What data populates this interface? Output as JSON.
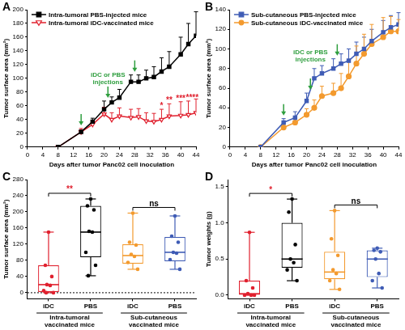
{
  "chart_data": [
    {
      "panel": "A",
      "type": "line",
      "x_label": "Days after tumor Panc02 cell inoculation",
      "y_label": "Tumor surface area (mm²)",
      "xlim": [
        0,
        44
      ],
      "xticks": [
        0,
        4,
        8,
        12,
        16,
        20,
        24,
        28,
        32,
        36,
        40,
        44
      ],
      "ylim": [
        0,
        200
      ],
      "yticks": [
        0,
        20,
        40,
        60,
        80,
        100,
        120,
        140,
        160,
        180,
        200
      ],
      "legend": "upper left",
      "x": [
        8,
        14,
        17,
        20,
        22,
        24,
        27,
        29,
        31,
        33,
        35,
        37,
        40,
        42,
        44
      ],
      "series": [
        {
          "name": "Intra-tumoral PBS-injected mice",
          "color": "#000000",
          "marker": "square",
          "values": [
            0,
            22,
            37,
            55,
            65,
            72,
            95,
            95,
            100,
            102,
            110,
            117,
            135,
            150,
            162
          ],
          "errors": [
            0,
            3,
            5,
            12,
            8,
            12,
            10,
            10,
            12,
            15,
            20,
            22,
            25,
            30,
            35
          ]
        },
        {
          "name": "Intra-tumoral iDC-vaccinated mice",
          "color": "#e0202e",
          "marker": "triangle-down-open",
          "values": [
            0,
            22,
            33,
            48,
            40,
            45,
            43,
            44,
            38,
            37,
            40,
            45,
            46,
            47,
            50
          ],
          "errors": [
            0,
            5,
            5,
            10,
            10,
            12,
            12,
            12,
            12,
            12,
            15,
            18,
            20,
            20,
            20
          ]
        }
      ],
      "annotation": {
        "text": [
          "iDC or PBS",
          "injections"
        ],
        "days": [
          14,
          21,
          28
        ],
        "color": "#2e9e3e"
      },
      "significance": {
        "series": 1,
        "x": [
          35,
          37,
          40,
          43
        ],
        "labels": [
          "*",
          "**",
          "***",
          "****"
        ],
        "color": "#e0202e"
      }
    },
    {
      "panel": "B",
      "type": "line",
      "x_label": "Days after tumor Panc02 cell inoculation",
      "y_label": "Tumor surface area (mm²)",
      "xlim": [
        0,
        44
      ],
      "xticks": [
        0,
        4,
        8,
        12,
        16,
        20,
        24,
        28,
        32,
        36,
        40,
        44
      ],
      "ylim": [
        0,
        140
      ],
      "yticks": [
        0,
        20,
        40,
        60,
        80,
        100,
        120,
        140
      ],
      "legend": "upper left",
      "x": [
        8,
        14,
        17,
        20,
        22,
        24,
        27,
        29,
        31,
        33,
        35,
        37,
        40,
        42,
        44
      ],
      "series": [
        {
          "name": "Sub-cutaneous PBS-injected mice",
          "color": "#3f5cb5",
          "marker": "square",
          "values": [
            0,
            25,
            30,
            47,
            70,
            75,
            80,
            85,
            88,
            95,
            100,
            108,
            117,
            122,
            125
          ],
          "errors": [
            0,
            4,
            6,
            8,
            10,
            8,
            10,
            10,
            12,
            12,
            12,
            12,
            12,
            12,
            12
          ]
        },
        {
          "name": "Sub-cutaneous iDC-vaccinated mice",
          "color": "#f39a2e",
          "marker": "circle",
          "values": [
            0,
            20,
            25,
            33,
            40,
            52,
            55,
            60,
            72,
            85,
            95,
            105,
            112,
            118,
            118
          ],
          "errors": [
            0,
            3,
            5,
            6,
            8,
            10,
            10,
            15,
            15,
            18,
            20,
            20,
            20,
            15,
            12
          ]
        }
      ],
      "annotation": {
        "text": [
          "iDC or PBS",
          "injections"
        ],
        "days": [
          14,
          21,
          28
        ],
        "color": "#2e9e3e"
      }
    },
    {
      "panel": "C",
      "type": "box",
      "y_label": "Tumor surface area (mm²)",
      "ylim": [
        -15,
        280
      ],
      "yticks": [
        0,
        40,
        80,
        120,
        160,
        200,
        240,
        280
      ],
      "reference_line": 0,
      "categories": [
        "iDC",
        "PBS",
        "iDC",
        "PBS"
      ],
      "colors": [
        "#e0202e",
        "#000000",
        "#f39a2e",
        "#3f5cb5"
      ],
      "boxes": [
        {
          "min": 0,
          "q1": 2,
          "median": 20,
          "q3": 68,
          "max": 150,
          "points": [
            150,
            68,
            40,
            20,
            18,
            5,
            0,
            0
          ]
        },
        {
          "min": 42,
          "q1": 88,
          "median": 150,
          "q3": 215,
          "max": 232,
          "points": [
            232,
            215,
            205,
            152,
            150,
            100,
            68,
            42
          ]
        },
        {
          "min": 58,
          "q1": 72,
          "median": 92,
          "q3": 120,
          "max": 197,
          "points": [
            197,
            125,
            118,
            95,
            90,
            75,
            58
          ]
        },
        {
          "min": 58,
          "q1": 78,
          "median": 100,
          "q3": 138,
          "max": 190,
          "points": [
            190,
            140,
            125,
            100,
            98,
            82,
            58
          ]
        }
      ],
      "groups": [
        {
          "label": [
            "Intra-tumoral",
            "vaccinated mice"
          ],
          "categories": [
            0,
            1
          ]
        },
        {
          "label": [
            "Sub-cutaneous",
            "vaccinated mice"
          ],
          "categories": [
            2,
            3
          ]
        }
      ],
      "comparisons": [
        {
          "categories": [
            0,
            1
          ],
          "label": "**",
          "color": "#e0202e"
        },
        {
          "categories": [
            2,
            3
          ],
          "label": "ns",
          "color": "#000000"
        }
      ]
    },
    {
      "panel": "D",
      "type": "box",
      "y_label": "Tumor weights (g)",
      "ylim": [
        -0.05,
        1.6
      ],
      "yticks": [
        {
          "value": 0,
          "label": "0.0"
        },
        0.5,
        {
          "value": 1,
          "label": "1.0"
        },
        1.5
      ],
      "categories": [
        "iDC",
        "PBS",
        "iDC",
        "PBS"
      ],
      "colors": [
        "#e0202e",
        "#000000",
        "#f39a2e",
        "#3f5cb5"
      ],
      "boxes": [
        {
          "min": 0,
          "q1": 0,
          "median": 0.02,
          "q3": 0.2,
          "max": 0.87,
          "points": [
            0.87,
            0.2,
            0.1,
            0.02,
            0,
            0,
            0
          ]
        },
        {
          "min": 0.2,
          "q1": 0.38,
          "median": 0.5,
          "q3": 1.0,
          "max": 1.33,
          "points": [
            1.33,
            1.15,
            0.7,
            0.5,
            0.45,
            0.35,
            0.2
          ]
        },
        {
          "min": 0.08,
          "q1": 0.22,
          "median": 0.32,
          "q3": 0.6,
          "max": 1.17,
          "points": [
            1.17,
            0.78,
            0.55,
            0.35,
            0.3,
            0.2,
            0.08
          ]
        },
        {
          "min": 0.1,
          "q1": 0.25,
          "median": 0.5,
          "q3": 0.62,
          "max": 0.65,
          "points": [
            0.65,
            0.62,
            0.6,
            0.5,
            0.3,
            0.2,
            0.1
          ]
        }
      ],
      "groups": [
        {
          "label": [
            "Intra-tumoral",
            "vaccinated mice"
          ],
          "categories": [
            0,
            1
          ]
        },
        {
          "label": [
            "Sub-cutaneous",
            "vaccinated mice"
          ],
          "categories": [
            2,
            3
          ]
        }
      ],
      "comparisons": [
        {
          "categories": [
            0,
            1
          ],
          "label": "*",
          "color": "#e0202e"
        },
        {
          "categories": [
            2,
            3
          ],
          "label": "ns",
          "color": "#000000"
        }
      ]
    }
  ]
}
